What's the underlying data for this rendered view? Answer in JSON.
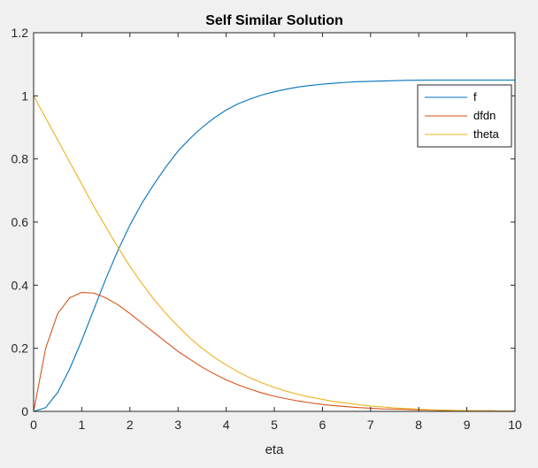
{
  "figure": {
    "background": "#f0f0f0",
    "axes_background": "#ffffff"
  },
  "chart_data": {
    "type": "line",
    "title": "Self Similar Solution",
    "xlabel": "eta",
    "ylabel": "",
    "xlim": [
      0,
      10
    ],
    "ylim": [
      0,
      1.2
    ],
    "xticks": [
      0,
      1,
      2,
      3,
      4,
      5,
      6,
      7,
      8,
      9,
      10
    ],
    "xtick_labels": [
      "0",
      "1",
      "2",
      "3",
      "4",
      "5",
      "6",
      "7",
      "8",
      "9",
      "10"
    ],
    "yticks": [
      0,
      0.2,
      0.4,
      0.6,
      0.8,
      1,
      1.2
    ],
    "ytick_labels": [
      "0",
      "0.2",
      "0.4",
      "0.6",
      "0.8",
      "1",
      "1.2"
    ],
    "grid": false,
    "legend_position": "top-right",
    "x": [
      0,
      0.25,
      0.5,
      0.75,
      1,
      1.25,
      1.5,
      1.75,
      2,
      2.25,
      2.5,
      2.75,
      3,
      3.25,
      3.5,
      3.75,
      4,
      4.25,
      4.5,
      4.75,
      5,
      5.25,
      5.5,
      5.75,
      6,
      6.25,
      6.5,
      6.75,
      7,
      7.25,
      7.5,
      7.75,
      8,
      8.25,
      8.5,
      8.75,
      9,
      9.25,
      9.5,
      9.75,
      10
    ],
    "series": [
      {
        "name": "f",
        "color": "#0072bd",
        "values": [
          0,
          0.012,
          0.06,
          0.135,
          0.225,
          0.323,
          0.42,
          0.51,
          0.59,
          0.66,
          0.72,
          0.775,
          0.825,
          0.865,
          0.9,
          0.93,
          0.955,
          0.975,
          0.99,
          1.003,
          1.013,
          1.021,
          1.028,
          1.033,
          1.037,
          1.04,
          1.043,
          1.045,
          1.046,
          1.047,
          1.048,
          1.049,
          1.0495,
          1.05,
          1.05,
          1.05,
          1.05,
          1.05,
          1.05,
          1.05,
          1.05
        ]
      },
      {
        "name": "dfdn",
        "color": "#d95319",
        "values": [
          0,
          0.2,
          0.31,
          0.36,
          0.377,
          0.375,
          0.36,
          0.338,
          0.31,
          0.28,
          0.25,
          0.22,
          0.19,
          0.165,
          0.14,
          0.119,
          0.1,
          0.084,
          0.07,
          0.058,
          0.048,
          0.04,
          0.033,
          0.027,
          0.022,
          0.018,
          0.015,
          0.012,
          0.01,
          0.008,
          0.007,
          0.006,
          0.005,
          0.004,
          0.003,
          0.003,
          0.002,
          0.002,
          0.002,
          0.001,
          0.001
        ]
      },
      {
        "name": "theta",
        "color": "#edb120",
        "values": [
          1,
          0.93,
          0.86,
          0.79,
          0.72,
          0.65,
          0.585,
          0.52,
          0.46,
          0.405,
          0.355,
          0.31,
          0.27,
          0.232,
          0.2,
          0.172,
          0.147,
          0.125,
          0.106,
          0.09,
          0.076,
          0.064,
          0.054,
          0.045,
          0.038,
          0.031,
          0.026,
          0.021,
          0.017,
          0.014,
          0.011,
          0.009,
          0.007,
          0.005,
          0.004,
          0.003,
          0.002,
          0.002,
          0.001,
          0.001,
          0
        ]
      }
    ]
  }
}
